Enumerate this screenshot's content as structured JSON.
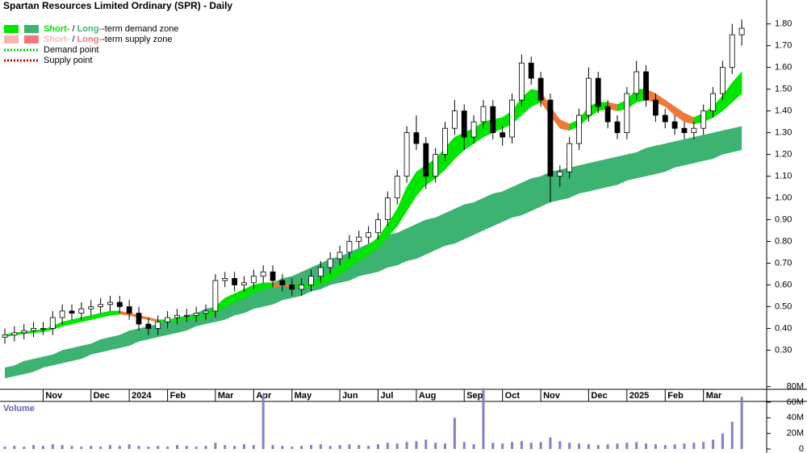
{
  "chart_data": [
    {
      "type": "candlestick",
      "title": "Spartan Resources Limited Ordinary (SPR) - Daily",
      "legend": [
        {
          "short": "Short-",
          "sep": " / ",
          "long": "Long-",
          "text": "-term demand zone",
          "short_color": "#00e600",
          "long_color": "#3cb371"
        },
        {
          "short": "Short-",
          "sep": " / ",
          "long": "Long-",
          "text": "-term supply zone",
          "short_color": "#f5b5b5",
          "long_color": "#f07878"
        },
        {
          "text": "Demand point",
          "color": "#00cc00"
        },
        {
          "text": "Supply point",
          "color": "#cc0000"
        }
      ],
      "categories": [
        null,
        null,
        null,
        null,
        "Nov",
        null,
        null,
        null,
        null,
        "Dec",
        null,
        null,
        null,
        "2024",
        null,
        null,
        null,
        "Feb",
        null,
        null,
        null,
        null,
        "Mar",
        null,
        null,
        null,
        "Apr",
        null,
        null,
        null,
        "May",
        null,
        null,
        null,
        null,
        "Jun",
        null,
        null,
        null,
        "Jul",
        null,
        null,
        null,
        "Aug",
        null,
        null,
        null,
        null,
        "Sep",
        null,
        null,
        null,
        "Oct",
        null,
        null,
        null,
        "Nov",
        null,
        null,
        null,
        null,
        "Dec",
        null,
        null,
        null,
        "2025",
        null,
        null,
        null,
        "Feb",
        null,
        null,
        null,
        "Mar",
        null,
        null,
        null,
        null
      ],
      "open": [
        0.36,
        0.37,
        0.38,
        0.39,
        0.4,
        0.4,
        0.45,
        0.48,
        0.47,
        0.49,
        0.5,
        0.51,
        0.52,
        0.5,
        0.47,
        0.42,
        0.4,
        0.43,
        0.45,
        0.46,
        0.46,
        0.47,
        0.48,
        0.62,
        0.63,
        0.6,
        0.61,
        0.64,
        0.66,
        0.62,
        0.6,
        0.58,
        0.6,
        0.64,
        0.68,
        0.72,
        0.75,
        0.8,
        0.82,
        0.84,
        0.9,
        1.0,
        1.1,
        1.3,
        1.25,
        1.1,
        1.2,
        1.32,
        1.4,
        1.28,
        1.35,
        1.42,
        1.3,
        1.28,
        1.45,
        1.62,
        1.55,
        1.45,
        1.1,
        1.12,
        1.25,
        1.38,
        1.55,
        1.42,
        1.35,
        1.3,
        1.48,
        1.58,
        1.45,
        1.38,
        1.35,
        1.32,
        1.3,
        1.32,
        1.4,
        1.48,
        1.6,
        1.75
      ],
      "high": [
        0.4,
        0.41,
        0.42,
        0.43,
        0.43,
        0.48,
        0.51,
        0.51,
        0.52,
        0.53,
        0.54,
        0.55,
        0.55,
        0.53,
        0.5,
        0.45,
        0.46,
        0.48,
        0.49,
        0.49,
        0.5,
        0.51,
        0.65,
        0.66,
        0.66,
        0.64,
        0.67,
        0.69,
        0.69,
        0.65,
        0.63,
        0.63,
        0.67,
        0.71,
        0.75,
        0.78,
        0.83,
        0.85,
        0.87,
        0.93,
        1.03,
        1.13,
        1.33,
        1.38,
        1.28,
        1.23,
        1.35,
        1.45,
        1.43,
        1.38,
        1.45,
        1.45,
        1.33,
        1.48,
        1.66,
        1.65,
        1.58,
        1.48,
        1.15,
        1.28,
        1.41,
        1.6,
        1.58,
        1.45,
        1.38,
        1.51,
        1.63,
        1.61,
        1.48,
        1.41,
        1.38,
        1.35,
        1.35,
        1.43,
        1.51,
        1.63,
        1.8,
        1.82
      ],
      "low": [
        0.33,
        0.34,
        0.35,
        0.36,
        0.37,
        0.37,
        0.42,
        0.44,
        0.44,
        0.46,
        0.47,
        0.48,
        0.47,
        0.44,
        0.39,
        0.37,
        0.37,
        0.4,
        0.42,
        0.43,
        0.43,
        0.44,
        0.45,
        0.59,
        0.57,
        0.57,
        0.58,
        0.61,
        0.59,
        0.57,
        0.55,
        0.55,
        0.57,
        0.61,
        0.65,
        0.69,
        0.72,
        0.77,
        0.79,
        0.81,
        0.87,
        0.97,
        1.07,
        1.22,
        1.04,
        1.07,
        1.17,
        1.29,
        1.22,
        1.25,
        1.32,
        1.27,
        1.24,
        1.25,
        1.42,
        1.52,
        1.42,
        0.98,
        1.05,
        1.09,
        1.22,
        1.35,
        1.39,
        1.32,
        1.27,
        1.27,
        1.45,
        1.42,
        1.35,
        1.32,
        1.29,
        1.27,
        1.27,
        1.29,
        1.37,
        1.45,
        1.57,
        1.7
      ],
      "close": [
        0.37,
        0.38,
        0.39,
        0.4,
        0.4,
        0.45,
        0.48,
        0.47,
        0.49,
        0.5,
        0.51,
        0.52,
        0.5,
        0.47,
        0.42,
        0.4,
        0.43,
        0.45,
        0.46,
        0.46,
        0.47,
        0.48,
        0.62,
        0.63,
        0.6,
        0.61,
        0.64,
        0.66,
        0.62,
        0.6,
        0.58,
        0.6,
        0.64,
        0.68,
        0.72,
        0.75,
        0.8,
        0.82,
        0.84,
        0.9,
        1.0,
        1.1,
        1.3,
        1.25,
        1.1,
        1.2,
        1.32,
        1.4,
        1.28,
        1.35,
        1.42,
        1.3,
        1.28,
        1.45,
        1.62,
        1.55,
        1.45,
        1.1,
        1.12,
        1.25,
        1.38,
        1.55,
        1.42,
        1.35,
        1.3,
        1.48,
        1.58,
        1.45,
        1.38,
        1.35,
        1.32,
        1.3,
        1.32,
        1.4,
        1.48,
        1.6,
        1.75,
        1.78
      ],
      "candle_color": "#000000",
      "short_term_zone": {
        "upper": [
          0.37,
          0.38,
          0.385,
          0.39,
          0.395,
          0.41,
          0.43,
          0.44,
          0.45,
          0.46,
          0.47,
          0.48,
          0.48,
          0.47,
          0.46,
          0.45,
          0.44,
          0.44,
          0.445,
          0.45,
          0.455,
          0.46,
          0.5,
          0.54,
          0.56,
          0.58,
          0.6,
          0.61,
          0.61,
          0.605,
          0.6,
          0.6,
          0.61,
          0.63,
          0.66,
          0.69,
          0.73,
          0.76,
          0.78,
          0.82,
          0.88,
          0.95,
          1.05,
          1.12,
          1.15,
          1.18,
          1.23,
          1.28,
          1.3,
          1.32,
          1.35,
          1.36,
          1.37,
          1.4,
          1.46,
          1.5,
          1.49,
          1.42,
          1.36,
          1.34,
          1.36,
          1.42,
          1.44,
          1.44,
          1.43,
          1.45,
          1.5,
          1.5,
          1.48,
          1.45,
          1.42,
          1.39,
          1.37,
          1.39,
          1.42,
          1.47,
          1.53,
          1.58
        ],
        "lower": [
          0.36,
          0.37,
          0.375,
          0.38,
          0.385,
          0.395,
          0.41,
          0.42,
          0.43,
          0.44,
          0.45,
          0.46,
          0.465,
          0.46,
          0.45,
          0.44,
          0.43,
          0.43,
          0.435,
          0.44,
          0.445,
          0.45,
          0.47,
          0.5,
          0.52,
          0.54,
          0.56,
          0.58,
          0.59,
          0.595,
          0.59,
          0.585,
          0.59,
          0.6,
          0.62,
          0.65,
          0.68,
          0.71,
          0.74,
          0.77,
          0.82,
          0.87,
          0.94,
          1.01,
          1.06,
          1.09,
          1.13,
          1.18,
          1.22,
          1.25,
          1.28,
          1.3,
          1.32,
          1.34,
          1.38,
          1.42,
          1.44,
          1.38,
          1.32,
          1.31,
          1.33,
          1.37,
          1.4,
          1.41,
          1.4,
          1.41,
          1.44,
          1.45,
          1.44,
          1.42,
          1.38,
          1.35,
          1.34,
          1.35,
          1.37,
          1.4,
          1.44,
          1.48
        ],
        "state": [
          "demand",
          "demand",
          "demand",
          "demand",
          "demand",
          "demand",
          "demand",
          "demand",
          "demand",
          "demand",
          "demand",
          "demand",
          "demand",
          "supply",
          "supply",
          "supply",
          "supply",
          "demand",
          "demand",
          "demand",
          "demand",
          "demand",
          "demand",
          "demand",
          "demand",
          "demand",
          "demand",
          "demand",
          "demand",
          "supply",
          "supply",
          "demand",
          "demand",
          "demand",
          "demand",
          "demand",
          "demand",
          "demand",
          "demand",
          "demand",
          "demand",
          "demand",
          "demand",
          "demand",
          "demand",
          "demand",
          "demand",
          "demand",
          "demand",
          "demand",
          "demand",
          "demand",
          "demand",
          "demand",
          "demand",
          "demand",
          "demand",
          "supply",
          "supply",
          "supply",
          "demand",
          "demand",
          "demand",
          "demand",
          "supply",
          "demand",
          "demand",
          "demand",
          "supply",
          "supply",
          "supply",
          "supply",
          "supply",
          "demand",
          "demand",
          "demand",
          "demand",
          "demand"
        ],
        "colors": {
          "demand": "#00e600",
          "supply": "#f07838"
        }
      },
      "long_term_zone": {
        "upper": [
          0.22,
          0.23,
          0.25,
          0.26,
          0.27,
          0.28,
          0.3,
          0.31,
          0.32,
          0.33,
          0.35,
          0.36,
          0.37,
          0.39,
          0.4,
          0.41,
          0.42,
          0.44,
          0.45,
          0.46,
          0.47,
          0.49,
          0.5,
          0.52,
          0.54,
          0.55,
          0.57,
          0.59,
          0.61,
          0.63,
          0.64,
          0.66,
          0.68,
          0.7,
          0.72,
          0.73,
          0.75,
          0.77,
          0.79,
          0.81,
          0.83,
          0.84,
          0.86,
          0.88,
          0.9,
          0.91,
          0.93,
          0.95,
          0.97,
          0.98,
          1.0,
          1.02,
          1.03,
          1.05,
          1.07,
          1.09,
          1.1,
          1.12,
          1.13,
          1.14,
          1.15,
          1.16,
          1.17,
          1.18,
          1.19,
          1.2,
          1.21,
          1.23,
          1.24,
          1.25,
          1.26,
          1.27,
          1.28,
          1.29,
          1.3,
          1.31,
          1.32,
          1.33
        ],
        "lower": [
          0.17,
          0.18,
          0.19,
          0.2,
          0.22,
          0.23,
          0.24,
          0.25,
          0.26,
          0.28,
          0.29,
          0.3,
          0.31,
          0.32,
          0.34,
          0.35,
          0.36,
          0.37,
          0.38,
          0.39,
          0.41,
          0.42,
          0.43,
          0.44,
          0.46,
          0.47,
          0.49,
          0.5,
          0.51,
          0.53,
          0.54,
          0.55,
          0.57,
          0.58,
          0.6,
          0.61,
          0.62,
          0.64,
          0.65,
          0.66,
          0.68,
          0.69,
          0.71,
          0.72,
          0.74,
          0.76,
          0.78,
          0.79,
          0.81,
          0.83,
          0.85,
          0.87,
          0.89,
          0.91,
          0.92,
          0.94,
          0.96,
          0.98,
          0.99,
          1.0,
          1.02,
          1.03,
          1.04,
          1.05,
          1.06,
          1.08,
          1.09,
          1.1,
          1.11,
          1.12,
          1.14,
          1.15,
          1.16,
          1.17,
          1.18,
          1.2,
          1.21,
          1.22
        ],
        "color": "#3cb371"
      },
      "ylim": [
        0.12,
        1.91
      ],
      "yticks": [
        {
          "value": 0.3,
          "label": "0.30"
        },
        {
          "value": 0.4,
          "label": "0.40"
        },
        {
          "value": 0.5,
          "label": "0.50"
        },
        {
          "value": 0.6,
          "label": "0.60"
        },
        {
          "value": 0.7,
          "label": "0.70"
        },
        {
          "value": 0.8,
          "label": "0.80"
        },
        {
          "value": 0.9,
          "label": "0.90"
        },
        {
          "value": 1.0,
          "label": "1.00"
        },
        {
          "value": 1.1,
          "label": "1.10"
        },
        {
          "value": 1.2,
          "label": "1.20"
        },
        {
          "value": 1.3,
          "label": "1.30"
        },
        {
          "value": 1.4,
          "label": "1.40"
        },
        {
          "value": 1.5,
          "label": "1.50"
        },
        {
          "value": 1.6,
          "label": "1.60"
        },
        {
          "value": 1.7,
          "label": "1.70"
        },
        {
          "value": 1.8,
          "label": "1.80"
        }
      ]
    },
    {
      "type": "bar",
      "label": "Volume",
      "color": "#8080c8",
      "values": [
        3000000,
        4000000,
        3000000,
        5000000,
        4000000,
        6000000,
        5000000,
        4000000,
        3000000,
        4000000,
        3000000,
        5000000,
        4000000,
        6000000,
        4000000,
        3000000,
        4000000,
        3000000,
        5000000,
        4000000,
        3000000,
        4000000,
        8000000,
        5000000,
        4000000,
        6000000,
        5000000,
        70000000,
        5000000,
        4000000,
        3000000,
        4000000,
        5000000,
        6000000,
        4000000,
        5000000,
        6000000,
        5000000,
        4000000,
        6000000,
        8000000,
        7000000,
        9000000,
        10000000,
        12000000,
        8000000,
        7000000,
        40000000,
        9000000,
        6000000,
        78000000,
        8000000,
        7000000,
        9000000,
        10000000,
        8000000,
        9000000,
        15000000,
        10000000,
        8000000,
        7000000,
        6000000,
        5000000,
        6000000,
        7000000,
        8000000,
        9000000,
        7000000,
        6000000,
        5000000,
        6000000,
        7000000,
        8000000,
        9000000,
        12000000,
        20000000,
        35000000,
        67000000
      ],
      "ylim": [
        0,
        90000000
      ],
      "yticks": [
        0,
        {
          "value": 20000000,
          "label": "20M"
        },
        {
          "value": 40000000,
          "label": "40M"
        },
        {
          "value": 60000000,
          "label": "60M"
        },
        {
          "value": 80000000,
          "label": "80M"
        }
      ]
    }
  ]
}
